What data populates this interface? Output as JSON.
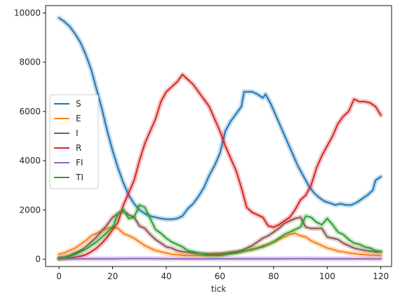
{
  "chart_data": {
    "type": "line",
    "title": "",
    "xlabel": "tick",
    "ylabel": "",
    "xlim": [
      -5,
      124
    ],
    "ylim": [
      -300,
      10300
    ],
    "xticks": [
      0,
      20,
      40,
      60,
      80,
      100,
      120
    ],
    "yticks": [
      0,
      2000,
      4000,
      6000,
      8000,
      10000
    ],
    "grid": false,
    "legend_position": "center-left",
    "series": [
      {
        "name": "S",
        "color": "#1f77b4",
        "points": [
          [
            0,
            9800
          ],
          [
            2,
            9650
          ],
          [
            4,
            9450
          ],
          [
            6,
            9150
          ],
          [
            8,
            8800
          ],
          [
            10,
            8300
          ],
          [
            12,
            7700
          ],
          [
            14,
            6900
          ],
          [
            16,
            6100
          ],
          [
            18,
            5200
          ],
          [
            20,
            4400
          ],
          [
            22,
            3700
          ],
          [
            24,
            3100
          ],
          [
            26,
            2600
          ],
          [
            28,
            2250
          ],
          [
            30,
            2000
          ],
          [
            32,
            1850
          ],
          [
            34,
            1750
          ],
          [
            36,
            1700
          ],
          [
            38,
            1650
          ],
          [
            40,
            1620
          ],
          [
            42,
            1620
          ],
          [
            44,
            1650
          ],
          [
            46,
            1750
          ],
          [
            48,
            2050
          ],
          [
            50,
            2250
          ],
          [
            52,
            2550
          ],
          [
            54,
            2900
          ],
          [
            56,
            3400
          ],
          [
            58,
            3800
          ],
          [
            60,
            4300
          ],
          [
            62,
            5200
          ],
          [
            64,
            5600
          ],
          [
            66,
            5900
          ],
          [
            68,
            6200
          ],
          [
            69,
            6800
          ],
          [
            72,
            6800
          ],
          [
            74,
            6700
          ],
          [
            76,
            6550
          ],
          [
            77,
            6700
          ],
          [
            79,
            6300
          ],
          [
            81,
            5800
          ],
          [
            83,
            5300
          ],
          [
            85,
            4800
          ],
          [
            87,
            4300
          ],
          [
            89,
            3800
          ],
          [
            91,
            3400
          ],
          [
            93,
            3000
          ],
          [
            95,
            2700
          ],
          [
            97,
            2500
          ],
          [
            99,
            2350
          ],
          [
            101,
            2280
          ],
          [
            103,
            2200
          ],
          [
            105,
            2250
          ],
          [
            107,
            2200
          ],
          [
            109,
            2200
          ],
          [
            111,
            2300
          ],
          [
            113,
            2450
          ],
          [
            115,
            2600
          ],
          [
            117,
            2800
          ],
          [
            118,
            3200
          ],
          [
            120,
            3350
          ]
        ]
      },
      {
        "name": "E",
        "color": "#ff7f0e",
        "points": [
          [
            0,
            200
          ],
          [
            2,
            250
          ],
          [
            4,
            350
          ],
          [
            6,
            450
          ],
          [
            8,
            600
          ],
          [
            10,
            750
          ],
          [
            12,
            950
          ],
          [
            14,
            1050
          ],
          [
            16,
            1150
          ],
          [
            18,
            1250
          ],
          [
            20,
            1300
          ],
          [
            22,
            1250
          ],
          [
            24,
            1050
          ],
          [
            26,
            950
          ],
          [
            28,
            850
          ],
          [
            30,
            700
          ],
          [
            32,
            550
          ],
          [
            34,
            450
          ],
          [
            36,
            350
          ],
          [
            38,
            300
          ],
          [
            40,
            250
          ],
          [
            42,
            200
          ],
          [
            44,
            180
          ],
          [
            46,
            160
          ],
          [
            48,
            150
          ],
          [
            50,
            150
          ],
          [
            52,
            150
          ],
          [
            54,
            150
          ],
          [
            56,
            160
          ],
          [
            58,
            180
          ],
          [
            60,
            180
          ],
          [
            62,
            220
          ],
          [
            64,
            250
          ],
          [
            66,
            280
          ],
          [
            68,
            300
          ],
          [
            70,
            350
          ],
          [
            72,
            380
          ],
          [
            74,
            450
          ],
          [
            76,
            550
          ],
          [
            78,
            600
          ],
          [
            80,
            700
          ],
          [
            82,
            800
          ],
          [
            84,
            900
          ],
          [
            86,
            1000
          ],
          [
            88,
            1050
          ],
          [
            90,
            950
          ],
          [
            92,
            900
          ],
          [
            94,
            750
          ],
          [
            96,
            650
          ],
          [
            98,
            550
          ],
          [
            100,
            450
          ],
          [
            102,
            400
          ],
          [
            104,
            320
          ],
          [
            106,
            300
          ],
          [
            108,
            250
          ],
          [
            110,
            230
          ],
          [
            112,
            200
          ],
          [
            114,
            180
          ],
          [
            116,
            160
          ],
          [
            118,
            160
          ],
          [
            120,
            150
          ]
        ]
      },
      {
        "name": "I",
        "color": "#8c564b",
        "points": [
          [
            0,
            50
          ],
          [
            2,
            80
          ],
          [
            4,
            150
          ],
          [
            6,
            250
          ],
          [
            8,
            350
          ],
          [
            10,
            500
          ],
          [
            12,
            700
          ],
          [
            14,
            900
          ],
          [
            16,
            1150
          ],
          [
            18,
            1400
          ],
          [
            20,
            1700
          ],
          [
            22,
            1850
          ],
          [
            24,
            1950
          ],
          [
            26,
            1800
          ],
          [
            28,
            1700
          ],
          [
            30,
            1350
          ],
          [
            32,
            1250
          ],
          [
            34,
            1000
          ],
          [
            36,
            800
          ],
          [
            38,
            650
          ],
          [
            40,
            500
          ],
          [
            42,
            450
          ],
          [
            44,
            350
          ],
          [
            46,
            300
          ],
          [
            48,
            280
          ],
          [
            50,
            250
          ],
          [
            52,
            230
          ],
          [
            54,
            220
          ],
          [
            56,
            220
          ],
          [
            58,
            230
          ],
          [
            60,
            230
          ],
          [
            62,
            250
          ],
          [
            64,
            280
          ],
          [
            66,
            300
          ],
          [
            68,
            350
          ],
          [
            70,
            450
          ],
          [
            72,
            550
          ],
          [
            74,
            700
          ],
          [
            76,
            850
          ],
          [
            78,
            950
          ],
          [
            80,
            1100
          ],
          [
            82,
            1250
          ],
          [
            84,
            1450
          ],
          [
            86,
            1550
          ],
          [
            88,
            1650
          ],
          [
            90,
            1700
          ],
          [
            92,
            1300
          ],
          [
            94,
            1250
          ],
          [
            96,
            1250
          ],
          [
            98,
            1250
          ],
          [
            100,
            900
          ],
          [
            102,
            850
          ],
          [
            104,
            800
          ],
          [
            106,
            650
          ],
          [
            108,
            550
          ],
          [
            110,
            450
          ],
          [
            112,
            400
          ],
          [
            114,
            350
          ],
          [
            116,
            320
          ],
          [
            118,
            300
          ],
          [
            120,
            300
          ]
        ]
      },
      {
        "name": "R",
        "color": "#d62728",
        "points": [
          [
            0,
            20
          ],
          [
            2,
            30
          ],
          [
            4,
            50
          ],
          [
            6,
            80
          ],
          [
            8,
            120
          ],
          [
            10,
            180
          ],
          [
            12,
            300
          ],
          [
            14,
            450
          ],
          [
            16,
            650
          ],
          [
            18,
            900
          ],
          [
            20,
            1200
          ],
          [
            22,
            1500
          ],
          [
            24,
            2200
          ],
          [
            26,
            2700
          ],
          [
            28,
            3200
          ],
          [
            30,
            4000
          ],
          [
            32,
            4700
          ],
          [
            34,
            5200
          ],
          [
            36,
            5700
          ],
          [
            38,
            6400
          ],
          [
            40,
            6800
          ],
          [
            42,
            7000
          ],
          [
            44,
            7200
          ],
          [
            46,
            7500
          ],
          [
            48,
            7300
          ],
          [
            50,
            7100
          ],
          [
            52,
            6800
          ],
          [
            54,
            6500
          ],
          [
            56,
            6200
          ],
          [
            58,
            5700
          ],
          [
            60,
            5200
          ],
          [
            62,
            4600
          ],
          [
            64,
            4100
          ],
          [
            66,
            3600
          ],
          [
            68,
            2900
          ],
          [
            70,
            2100
          ],
          [
            72,
            1900
          ],
          [
            74,
            1800
          ],
          [
            76,
            1700
          ],
          [
            78,
            1350
          ],
          [
            80,
            1300
          ],
          [
            82,
            1400
          ],
          [
            84,
            1550
          ],
          [
            86,
            1700
          ],
          [
            88,
            2000
          ],
          [
            90,
            2400
          ],
          [
            92,
            2600
          ],
          [
            94,
            3000
          ],
          [
            96,
            3700
          ],
          [
            98,
            4200
          ],
          [
            100,
            4600
          ],
          [
            102,
            5000
          ],
          [
            104,
            5500
          ],
          [
            106,
            5800
          ],
          [
            108,
            6000
          ],
          [
            110,
            6500
          ],
          [
            112,
            6400
          ],
          [
            114,
            6400
          ],
          [
            116,
            6350
          ],
          [
            118,
            6200
          ],
          [
            120,
            5850
          ]
        ]
      },
      {
        "name": "FI",
        "color": "#9467bd",
        "points": [
          [
            0,
            10
          ],
          [
            10,
            12
          ],
          [
            20,
            15
          ],
          [
            24,
            20
          ],
          [
            30,
            25
          ],
          [
            36,
            20
          ],
          [
            40,
            15
          ],
          [
            50,
            10
          ],
          [
            60,
            12
          ],
          [
            70,
            15
          ],
          [
            80,
            15
          ],
          [
            90,
            20
          ],
          [
            100,
            15
          ],
          [
            110,
            12
          ],
          [
            120,
            10
          ]
        ]
      },
      {
        "name": "TI",
        "color": "#2ca02c",
        "points": [
          [
            0,
            30
          ],
          [
            2,
            60
          ],
          [
            4,
            120
          ],
          [
            6,
            200
          ],
          [
            8,
            300
          ],
          [
            10,
            400
          ],
          [
            12,
            550
          ],
          [
            14,
            700
          ],
          [
            16,
            900
          ],
          [
            18,
            1100
          ],
          [
            20,
            1300
          ],
          [
            22,
            1850
          ],
          [
            24,
            2000
          ],
          [
            26,
            1650
          ],
          [
            28,
            1700
          ],
          [
            30,
            2200
          ],
          [
            32,
            2100
          ],
          [
            34,
            1650
          ],
          [
            36,
            1200
          ],
          [
            38,
            1050
          ],
          [
            40,
            850
          ],
          [
            42,
            700
          ],
          [
            44,
            600
          ],
          [
            46,
            500
          ],
          [
            48,
            350
          ],
          [
            50,
            300
          ],
          [
            52,
            250
          ],
          [
            54,
            200
          ],
          [
            56,
            150
          ],
          [
            58,
            150
          ],
          [
            60,
            150
          ],
          [
            62,
            180
          ],
          [
            64,
            220
          ],
          [
            66,
            250
          ],
          [
            68,
            300
          ],
          [
            70,
            350
          ],
          [
            72,
            400
          ],
          [
            74,
            450
          ],
          [
            76,
            500
          ],
          [
            78,
            600
          ],
          [
            80,
            700
          ],
          [
            82,
            850
          ],
          [
            84,
            1000
          ],
          [
            86,
            1100
          ],
          [
            88,
            1200
          ],
          [
            90,
            1300
          ],
          [
            92,
            1750
          ],
          [
            94,
            1700
          ],
          [
            96,
            1500
          ],
          [
            98,
            1400
          ],
          [
            100,
            1650
          ],
          [
            102,
            1400
          ],
          [
            104,
            1100
          ],
          [
            106,
            1000
          ],
          [
            108,
            800
          ],
          [
            110,
            650
          ],
          [
            112,
            600
          ],
          [
            114,
            500
          ],
          [
            116,
            450
          ],
          [
            118,
            350
          ],
          [
            120,
            300
          ]
        ]
      }
    ]
  }
}
